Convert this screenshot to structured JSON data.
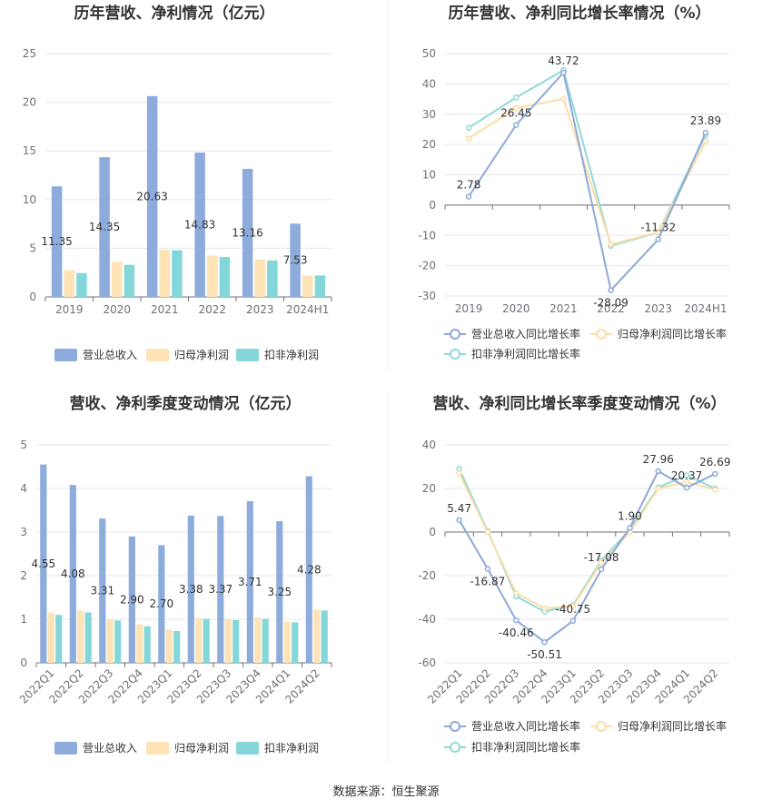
{
  "colors": {
    "revenue": "#8eacdb",
    "net_profit": "#fde3b6",
    "deducted_profit": "#84d7d8",
    "revenue_line": "#8ea9d6",
    "net_line": "#fbdca5",
    "deducted_line": "#8fdad8",
    "grid": "#e4e6ee",
    "divider": "#eeeeee"
  },
  "source_text": "数据来源：恒生聚源",
  "chart_data": [
    {
      "type": "bar",
      "title": "历年营收、净利情况（亿元）",
      "categories": [
        "2019",
        "2020",
        "2021",
        "2022",
        "2023",
        "2024H1"
      ],
      "ylim": [
        0,
        25
      ],
      "yticks": [
        "0",
        "5",
        "10",
        "15",
        "20",
        "25"
      ],
      "grid": true,
      "legend_position": "bottom",
      "series": [
        {
          "name": "营业总收入",
          "values": [
            11.35,
            14.35,
            20.63,
            14.83,
            13.16,
            7.53
          ],
          "labels": [
            "11.35",
            "14.35",
            "20.63",
            "14.83",
            "13.16",
            "7.53"
          ]
        },
        {
          "name": "归母净利润",
          "values": [
            2.75,
            3.6,
            4.85,
            4.25,
            3.85,
            2.2
          ]
        },
        {
          "name": "扣非净利润",
          "values": [
            2.45,
            3.3,
            4.8,
            4.1,
            3.75,
            2.2
          ]
        }
      ]
    },
    {
      "type": "line",
      "title": "历年营收、净利同比增长率情况（%）",
      "categories": [
        "2019",
        "2020",
        "2021",
        "2022",
        "2023",
        "2024H1"
      ],
      "ylim": [
        -30,
        50
      ],
      "yticks": [
        "-30",
        "-20",
        "-10",
        "0",
        "10",
        "20",
        "30",
        "40",
        "50"
      ],
      "grid": true,
      "legend_position": "bottom",
      "series": [
        {
          "name": "营业总收入同比增长率",
          "values": [
            2.78,
            26.45,
            43.72,
            -28.09,
            -11.32,
            23.89
          ],
          "labels": [
            "2.78",
            "26.45",
            "43.72",
            "-28.09",
            "-11.32",
            "23.89"
          ]
        },
        {
          "name": "归母净利润同比增长率",
          "values": [
            22,
            32,
            35,
            -13,
            -9,
            21
          ]
        },
        {
          "name": "扣非净利润同比增长率",
          "values": [
            25.5,
            35.5,
            44.5,
            -13.5,
            -9,
            23
          ]
        }
      ]
    },
    {
      "type": "bar",
      "title": "营收、净利季度变动情况（亿元）",
      "categories": [
        "2022Q1",
        "2022Q2",
        "2022Q3",
        "2022Q4",
        "2023Q1",
        "2023Q2",
        "2023Q3",
        "2023Q4",
        "2024Q1",
        "2024Q2"
      ],
      "ylim": [
        0,
        5
      ],
      "yticks": [
        "0",
        "1",
        "2",
        "3",
        "4",
        "5"
      ],
      "grid": true,
      "legend_position": "bottom",
      "series": [
        {
          "name": "营业总收入",
          "values": [
            4.55,
            4.08,
            3.31,
            2.9,
            2.7,
            3.38,
            3.37,
            3.71,
            3.25,
            4.28
          ],
          "labels": [
            "4.55",
            "4.08",
            "3.31",
            "2.90",
            "2.70",
            "3.38",
            "3.37",
            "3.71",
            "3.25",
            "4.28"
          ]
        },
        {
          "name": "归母净利润",
          "values": [
            1.15,
            1.2,
            1.0,
            0.88,
            0.77,
            1.03,
            1.0,
            1.04,
            0.95,
            1.22
          ]
        },
        {
          "name": "扣非净利润",
          "values": [
            1.1,
            1.16,
            0.97,
            0.84,
            0.73,
            1.01,
            0.98,
            1.01,
            0.93,
            1.2
          ]
        }
      ]
    },
    {
      "type": "line",
      "title": "营收、净利同比增长率季度变动情况（%）",
      "categories": [
        "2022Q1",
        "2022Q2",
        "2022Q3",
        "2022Q4",
        "2023Q1",
        "2023Q2",
        "2023Q3",
        "2023Q4",
        "2024Q1",
        "2024Q2"
      ],
      "ylim": [
        -60,
        40
      ],
      "yticks": [
        "-60",
        "-40",
        "-20",
        "0",
        "20",
        "40"
      ],
      "grid": true,
      "legend_position": "bottom",
      "series": [
        {
          "name": "营业总收入同比增长率",
          "values": [
            5.47,
            -16.87,
            -40.46,
            -50.51,
            -40.75,
            -17.08,
            1.9,
            27.96,
            20.37,
            26.69
          ],
          "labels": [
            "5.47",
            "-16.87",
            "-40.46",
            "-50.51",
            "-40.75",
            "-17.08",
            "1.90",
            "27.96",
            "20.37",
            "26.69"
          ]
        },
        {
          "name": "归母净利润同比增长率",
          "values": [
            27,
            0,
            -28,
            -35,
            -34,
            -14,
            0,
            20,
            23,
            19.5
          ]
        },
        {
          "name": "扣非净利润同比增长率",
          "values": [
            29,
            0.5,
            -29.5,
            -36.5,
            -33.5,
            -13,
            1,
            20.5,
            26,
            20
          ]
        }
      ]
    }
  ]
}
